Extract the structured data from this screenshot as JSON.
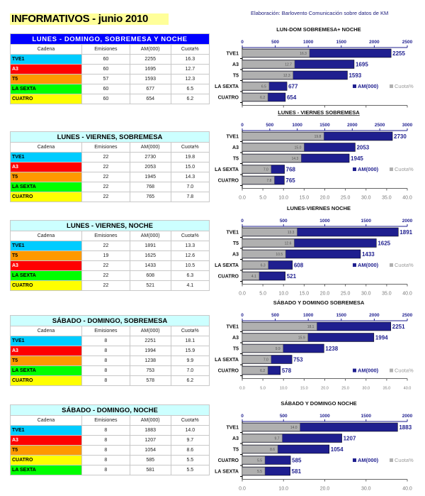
{
  "page": {
    "title": "INFORMATIVOS - junio 2010",
    "credit": "Elaboración: Barlovento Comunicación sobre datos de KM"
  },
  "channel_colors": {
    "TVE1": "#00ccff",
    "A3": "#ff0000",
    "T5": "#ff9900",
    "LA SEXTA": "#00ff00",
    "CUATRO": "#ffff00"
  },
  "channel_text_colors": {
    "TVE1": "#000000",
    "A3": "#ffffff",
    "T5": "#000000",
    "LA SEXTA": "#000000",
    "CUATRO": "#000000"
  },
  "colors": {
    "am_series": "#1f1f8f",
    "cuota_series": "#b0b0b0",
    "header_primary_bg": "#0000ff",
    "header_primary_text": "#ffffff",
    "header_secondary_bg": "#ccffff",
    "header_secondary_text": "#000000"
  },
  "tables": [
    {
      "header": "LUNES - DOMINGO, SOBREMESA Y NOCHE",
      "primary": true,
      "columns": [
        "Cadena",
        "Emisiones",
        "AM(000)",
        "Cuota%"
      ],
      "rows": [
        [
          "TVE1",
          "60",
          "2255",
          "16.3"
        ],
        [
          "A3",
          "60",
          "1695",
          "12.7"
        ],
        [
          "T5",
          "57",
          "1593",
          "12.3"
        ],
        [
          "LA SEXTA",
          "60",
          "677",
          "6.5"
        ],
        [
          "CUATRO",
          "60",
          "654",
          "6.2"
        ]
      ]
    },
    {
      "header": "LUNES - VIERNES, SOBREMESA",
      "primary": false,
      "columns": [
        "Cadena",
        "Emisiones",
        "AM(000)",
        "Cuota%"
      ],
      "rows": [
        [
          "TVE1",
          "22",
          "2730",
          "19.8"
        ],
        [
          "A3",
          "22",
          "2053",
          "15.0"
        ],
        [
          "T5",
          "22",
          "1945",
          "14.3"
        ],
        [
          "LA SEXTA",
          "22",
          "768",
          "7.0"
        ],
        [
          "CUATRO",
          "22",
          "765",
          "7.8"
        ]
      ]
    },
    {
      "header": "LUNES - VIERNES, NOCHE",
      "primary": false,
      "columns": [
        "Cadena",
        "Emisiones",
        "AM(000)",
        "Cuota%"
      ],
      "rows": [
        [
          "TVE1",
          "22",
          "1891",
          "13.3"
        ],
        [
          "T5",
          "19",
          "1625",
          "12.6"
        ],
        [
          "A3",
          "22",
          "1433",
          "10.5"
        ],
        [
          "LA SEXTA",
          "22",
          "608",
          "6.3"
        ],
        [
          "CUATRO",
          "22",
          "521",
          "4.1"
        ]
      ]
    },
    {
      "header": "SÁBADO - DOMINGO, SOBREMESA",
      "primary": false,
      "columns": [
        "Cadena",
        "Emisiones",
        "AM(000)",
        "Cuota%"
      ],
      "rows": [
        [
          "TVE1",
          "8",
          "2251",
          "18.1"
        ],
        [
          "A3",
          "8",
          "1994",
          "15.9"
        ],
        [
          "T5",
          "8",
          "1238",
          "9.9"
        ],
        [
          "LA SEXTA",
          "8",
          "753",
          "7.0"
        ],
        [
          "CUATRO",
          "8",
          "578",
          "6.2"
        ]
      ]
    },
    {
      "header": "SÁBADO - DOMINGO, NOCHE",
      "primary": false,
      "columns": [
        "Cadena",
        "Emisiones",
        "AM(000)",
        "Cuota%"
      ],
      "rows": [
        [
          "TVE1",
          "8",
          "1883",
          "14.0"
        ],
        [
          "A3",
          "8",
          "1207",
          "9.7"
        ],
        [
          "T5",
          "8",
          "1054",
          "8.6"
        ],
        [
          "CUATRO",
          "8",
          "585",
          "5.5"
        ],
        [
          "LA SEXTA",
          "8",
          "581",
          "5.5"
        ]
      ]
    }
  ],
  "chart_data": [
    {
      "type": "bar",
      "orientation": "horizontal",
      "title": "LUN-DOM SOBREMESA+ NOCHE",
      "categories": [
        "TVE1",
        "A3",
        "T5",
        "LA SEXTA",
        "CUATRO"
      ],
      "series": [
        {
          "name": "AM(000)",
          "axis": "top",
          "values": [
            2255,
            1695,
            1593,
            677,
            654
          ]
        },
        {
          "name": "Cuota%",
          "axis": "bottom",
          "values": [
            16.3,
            12.7,
            12.3,
            6.5,
            6.2
          ]
        }
      ],
      "top_axis": {
        "range": [
          0,
          2500
        ],
        "ticks": [
          "0",
          "500",
          "1000",
          "1500",
          "2000",
          "2500"
        ]
      },
      "bottom_axis": {
        "range": [
          0,
          40
        ],
        "ticks": [
          "0.0",
          "10.0",
          "20.0",
          "30.0",
          "40.0"
        ]
      },
      "legend": [
        "AM(000)",
        "Cuota%"
      ],
      "legend_position": "bottom-right",
      "grid": false,
      "title_underline": false
    },
    {
      "type": "bar",
      "orientation": "horizontal",
      "title": "LUNES - VIERNES SOBREMESA",
      "categories": [
        "TVE1",
        "A3",
        "T5",
        "LA SEXTA",
        "CUATRO"
      ],
      "series": [
        {
          "name": "AM(000)",
          "axis": "top",
          "values": [
            2730,
            2053,
            1945,
            768,
            765
          ]
        },
        {
          "name": "Cuota%",
          "axis": "bottom",
          "values": [
            19.8,
            15.0,
            14.3,
            7.0,
            7.8
          ]
        }
      ],
      "top_axis": {
        "range": [
          0,
          3000
        ],
        "ticks": [
          "0",
          "500",
          "1000",
          "1500",
          "2000",
          "2500",
          "3000"
        ]
      },
      "bottom_axis": {
        "range": [
          0,
          40
        ],
        "ticks": [
          "0.0",
          "5.0",
          "10.0",
          "15.0",
          "20.0",
          "25.0",
          "30.0",
          "35.0",
          "40.0"
        ]
      },
      "legend": [
        "AM(000)",
        "Cuota%"
      ],
      "legend_position": "bottom-right",
      "grid": false,
      "title_underline": true
    },
    {
      "type": "bar",
      "orientation": "horizontal",
      "title": "LUNES-VIERNES NOCHE",
      "categories": [
        "TVE1",
        "T5",
        "A3",
        "LA SEXTA",
        "CUATRO"
      ],
      "series": [
        {
          "name": "AM(000)",
          "axis": "top",
          "values": [
            1891,
            1625,
            1433,
            608,
            521
          ]
        },
        {
          "name": "Cuota%",
          "axis": "bottom",
          "values": [
            13.3,
            12.6,
            10.5,
            6.3,
            4.1
          ]
        }
      ],
      "top_axis": {
        "range": [
          0,
          2000
        ],
        "ticks": [
          "0",
          "500",
          "1000",
          "1500",
          "2000"
        ]
      },
      "bottom_axis": {
        "range": [
          0,
          40
        ],
        "ticks": [
          "0.0",
          "5.0",
          "10.0",
          "15.0",
          "20.0",
          "25.0",
          "30.0",
          "35.0",
          "40.0"
        ]
      },
      "legend": [
        "AM(000)",
        "Cuota%"
      ],
      "legend_position": "bottom-right",
      "grid": false,
      "title_underline": false
    },
    {
      "type": "bar",
      "orientation": "horizontal",
      "title": "SÁBADO Y DOMINGO SOBREMESA",
      "categories": [
        "TVE1",
        "A3",
        "T5",
        "LA SEXTA",
        "CUATRO"
      ],
      "series": [
        {
          "name": "AM(000)",
          "axis": "top",
          "values": [
            2251,
            1994,
            1238,
            753,
            578
          ]
        },
        {
          "name": "Cuota%",
          "axis": "bottom",
          "values": [
            18.1,
            15.9,
            9.9,
            7.0,
            6.2
          ]
        }
      ],
      "top_axis": {
        "range": [
          0,
          2500
        ],
        "ticks": [
          "0",
          "500",
          "1000",
          "1500",
          "2000",
          "2500"
        ]
      },
      "bottom_axis": {
        "range": [
          0,
          40
        ],
        "ticks": [
          "0.0",
          "5.0",
          "10.0",
          "15.0",
          "20.0",
          "25.0",
          "30.0",
          "35.0",
          "40.0"
        ]
      },
      "legend": [
        "AM(000)",
        "Cuota%"
      ],
      "legend_position": "bottom-right",
      "grid": false,
      "title_underline": false
    },
    {
      "type": "bar",
      "orientation": "horizontal",
      "title": "SÁBADO Y DOMINGO NOCHE",
      "categories": [
        "TVE1",
        "A3",
        "T5",
        "CUATRO",
        "LA SEXTA"
      ],
      "series": [
        {
          "name": "AM(000)",
          "axis": "top",
          "values": [
            1883,
            1207,
            1054,
            585,
            581
          ]
        },
        {
          "name": "Cuota%",
          "axis": "bottom",
          "values": [
            14.0,
            9.7,
            8.6,
            5.5,
            5.5
          ]
        }
      ],
      "top_axis": {
        "range": [
          0,
          2000
        ],
        "ticks": [
          "0",
          "500",
          "1000",
          "1500",
          "2000"
        ]
      },
      "bottom_axis": {
        "range": [
          0,
          40
        ],
        "ticks": [
          "0.0",
          "10.0",
          "20.0",
          "30.0",
          "40.0"
        ]
      },
      "legend": [
        "AM(000)",
        "Cuota%"
      ],
      "legend_position": "bottom-right",
      "grid": false,
      "title_underline": false
    }
  ]
}
